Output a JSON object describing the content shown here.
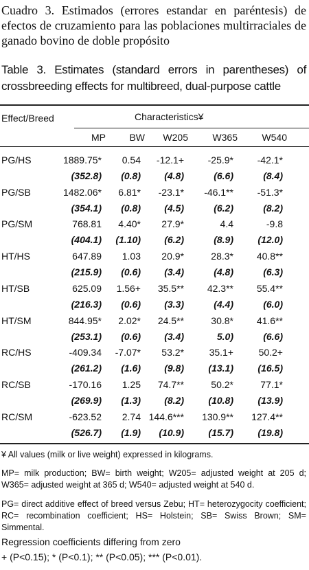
{
  "caption_es": "Cuadro 3.  Estimados (errores estandar en paréntesis) de efectos de cruzamiento para las poblaciones multirraciales de ganado bovino de doble propósito",
  "caption_en": "Table 3. Estimates (standard errors in parentheses) of crossbreeding effects for multibreed, dual-purpose cattle",
  "table": {
    "header": {
      "effect": "Effect/Breed",
      "group": "Characteristics¥",
      "columns": [
        "MP",
        "BW",
        "W205",
        "W365",
        "W540"
      ]
    },
    "rows": [
      {
        "effect": "PG/HS",
        "estimates": [
          "1889.75*",
          "0.54",
          "-12.1+",
          "-25.9*",
          "-42.1*"
        ],
        "errors": [
          "(352.8)",
          "(0.8)",
          "(4.8)",
          "(6.6)",
          "(8.4)"
        ]
      },
      {
        "effect": "PG/SB",
        "estimates": [
          "1482.06*",
          "6.81*",
          "-23.1*",
          "-46.1**",
          "-51.3*"
        ],
        "errors": [
          "(354.1)",
          "(0.8)",
          "(4.5)",
          "(6.2)",
          "(8.2)"
        ]
      },
      {
        "effect": "PG/SM",
        "estimates": [
          "768.81",
          "4.40*",
          "27.9*",
          "4.4",
          "-9.8"
        ],
        "errors": [
          "(404.1)",
          "(1.10)",
          "(6.2)",
          "(8.9)",
          "(12.0)"
        ]
      },
      {
        "effect": "HT/HS",
        "estimates": [
          "647.89",
          "1.03",
          "20.9*",
          "28.3*",
          "40.8**"
        ],
        "errors": [
          "(215.9)",
          "(0.6)",
          "(3.4)",
          "(4.8)",
          "(6.3)"
        ]
      },
      {
        "effect": "HT/SB",
        "estimates": [
          "625.09",
          "1.56+",
          "35.5**",
          "42.3**",
          "55.4**"
        ],
        "errors": [
          "(216.3)",
          "(0.6)",
          "(3.3)",
          "(4.4)",
          "(6.0)"
        ]
      },
      {
        "effect": "HT/SM",
        "estimates": [
          "844.95*",
          "2.02*",
          "24.5**",
          "30.8*",
          "41.6**"
        ],
        "errors": [
          "(253.1)",
          "(0.6)",
          "(3.4)",
          "5.0)",
          "(6.6)"
        ]
      },
      {
        "effect": "RC/HS",
        "estimates": [
          "-409.34",
          "-7.07*",
          "53.2*",
          "35.1+",
          "50.2+"
        ],
        "errors": [
          "(261.2)",
          "(1.6)",
          "(9.8)",
          "(13.1)",
          "(16.5)"
        ]
      },
      {
        "effect": "RC/SB",
        "estimates": [
          "-170.16",
          "1.25",
          "74.7**",
          "50.2*",
          "77.1*"
        ],
        "errors": [
          "(269.9)",
          "(1.3)",
          "(8.2)",
          "(10.8)",
          "(13.9)"
        ]
      },
      {
        "effect": "RC/SM",
        "estimates": [
          "-623.52",
          "2.74",
          "144.6***",
          "130.9**",
          "127.4**"
        ],
        "errors": [
          "(526.7)",
          "(1.9)",
          "(10.9)",
          "(15.7)",
          "(19.8)"
        ]
      }
    ]
  },
  "footnotes": [
    "¥ All values (milk or live weight) expressed in kilograms.",
    "MP= milk production; BW= birth weight; W205= adjusted weight at 205 d; W365= adjusted weight at 365 d; W540= adjusted weight at 540 d.",
    "PG= direct additive effect of breed versus Zebu; HT= heterozygocity coefficient; RC= recombination coefficient; HS= Holstein; SB= Swiss Brown; SM= Simmental.",
    "Regression coefficients differing from zero",
    "+ (P<0.15); * (P<0.1); ** (P<0.05); *** (P<0.01)."
  ]
}
